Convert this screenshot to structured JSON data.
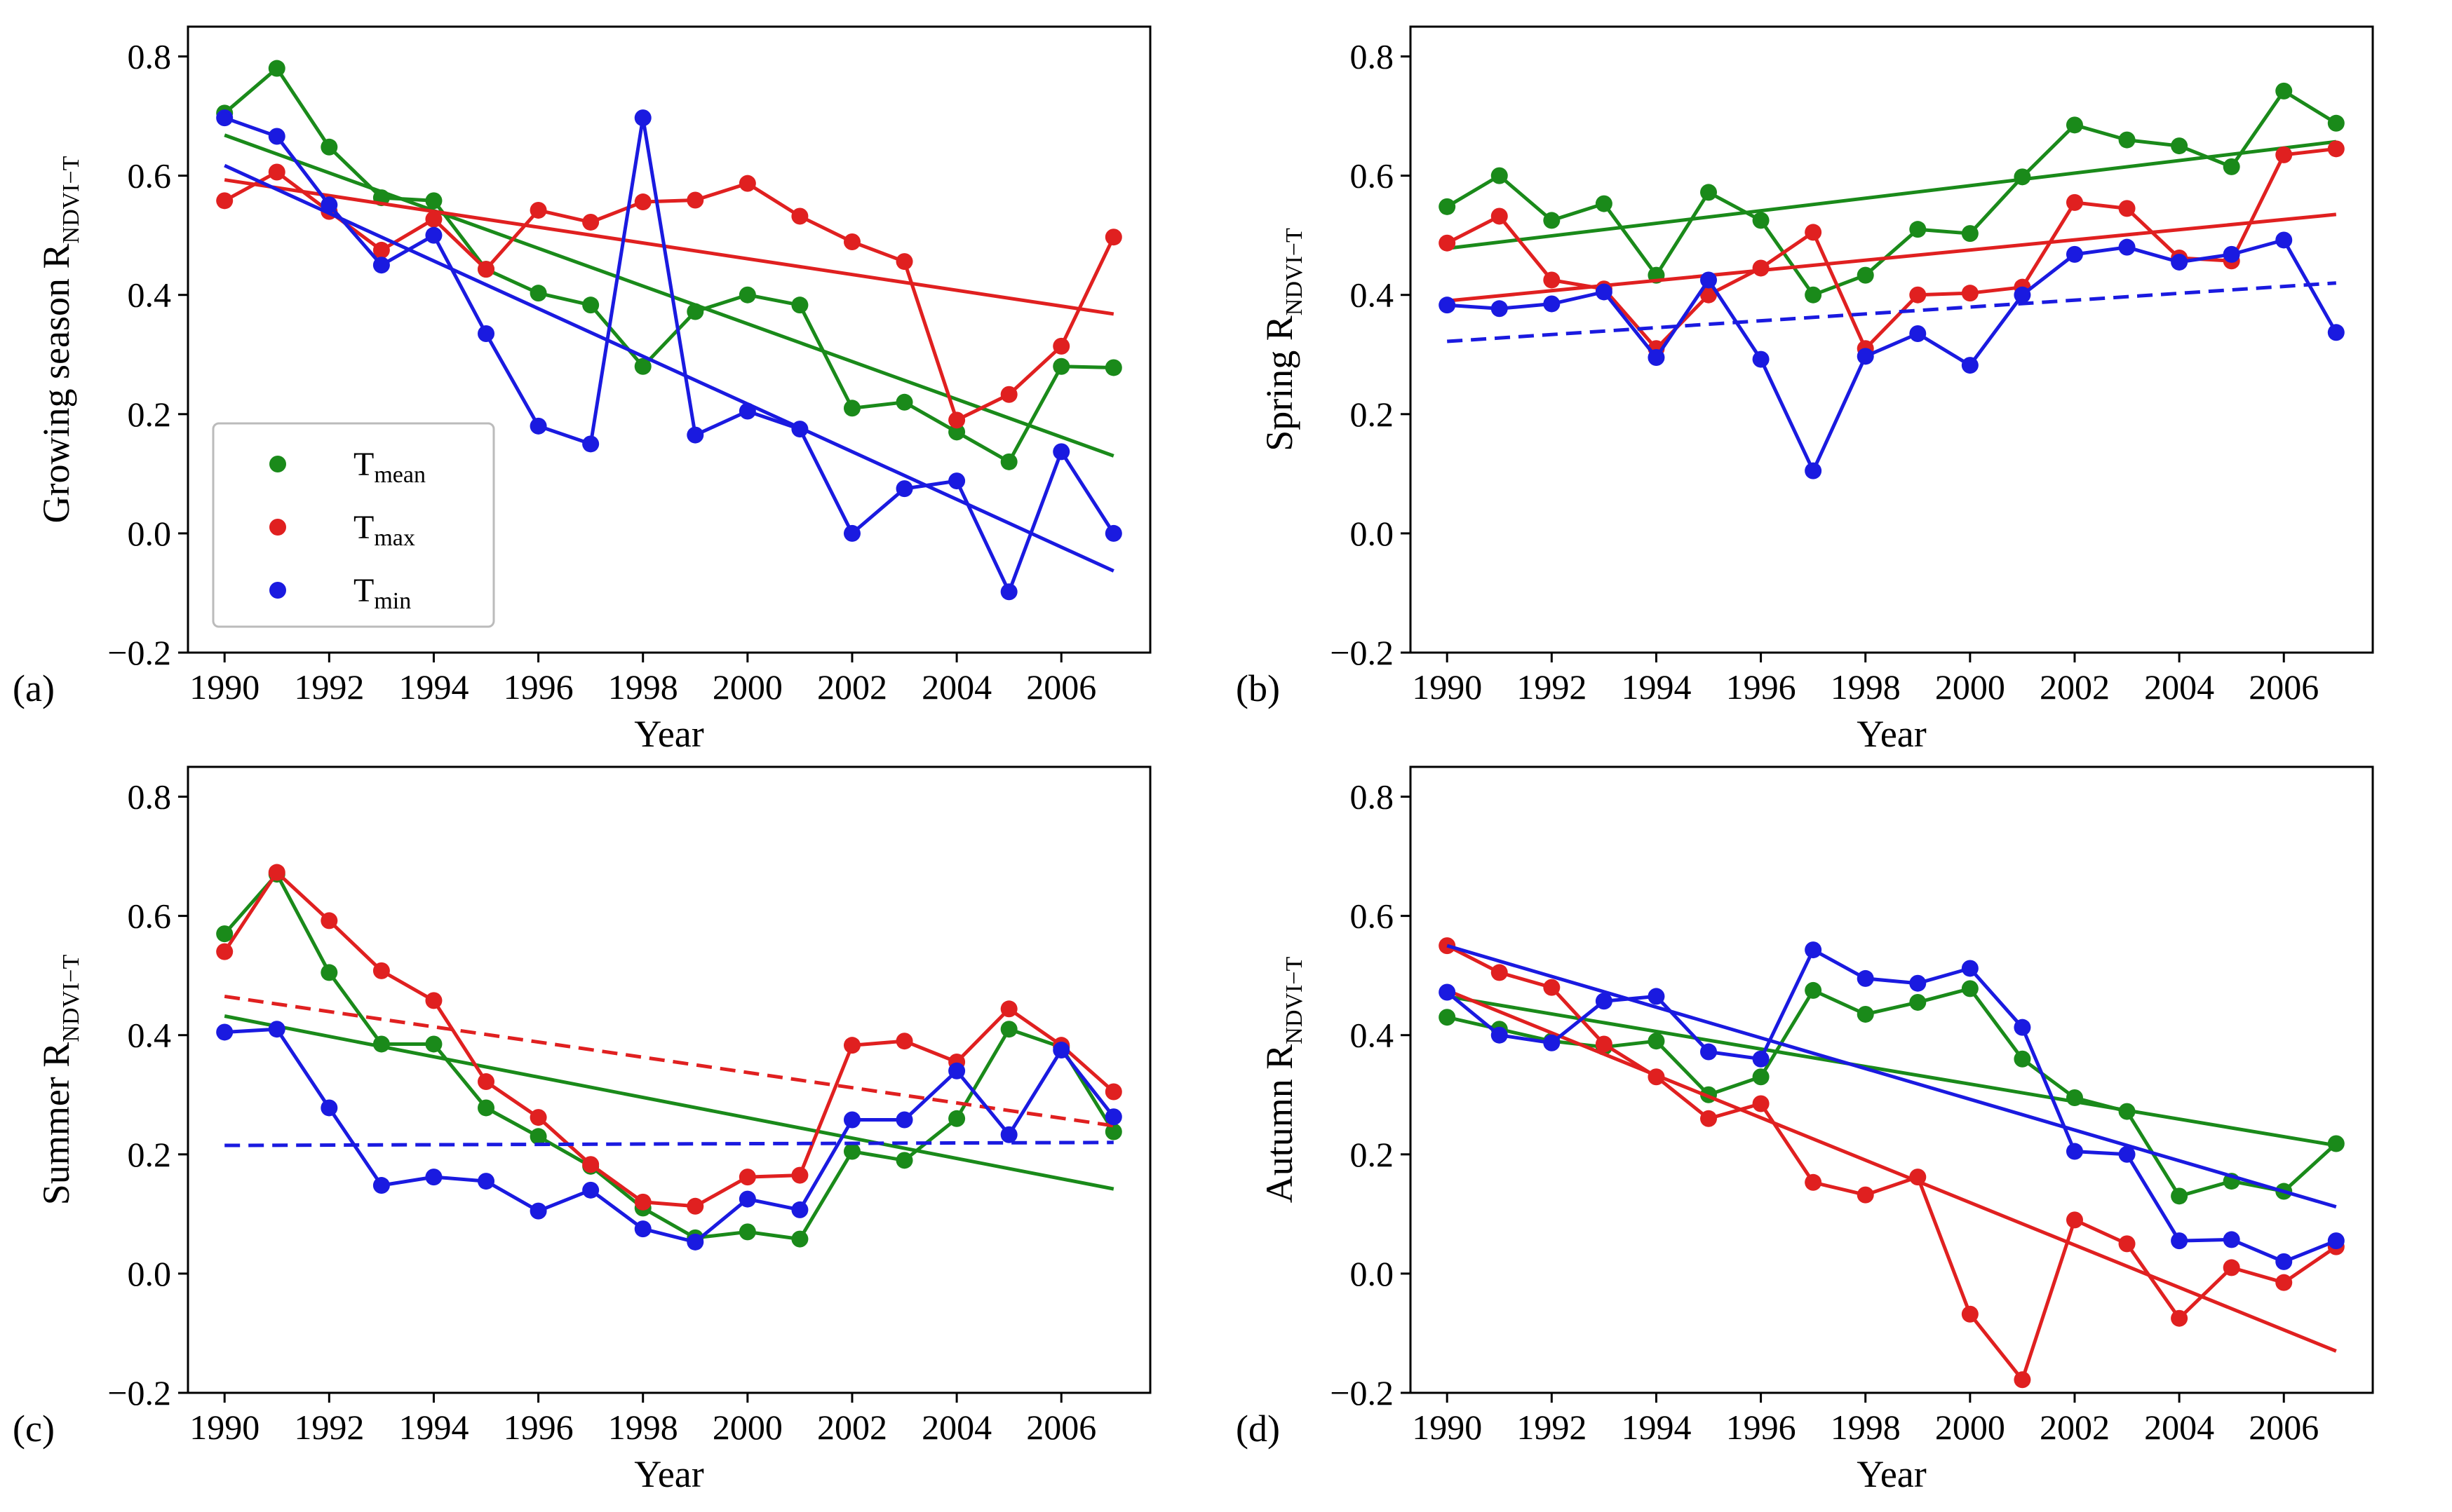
{
  "chart_data": [
    {
      "type": "line",
      "panel_label": "(a)",
      "title": "",
      "xlabel": "Year",
      "ylabel_main": "Growing season R",
      "ylabel_sub": "NDVI−T",
      "x": [
        1990,
        1991,
        1992,
        1993,
        1994,
        1995,
        1996,
        1997,
        1998,
        1999,
        2000,
        2001,
        2002,
        2003,
        2004,
        2005,
        2006,
        2007
      ],
      "xticks": [
        1990,
        1992,
        1994,
        1996,
        1998,
        2000,
        2002,
        2004,
        2006
      ],
      "xtick_labels": [
        "1990",
        "1992",
        "1994",
        "1996",
        "1998",
        "2000",
        "2002",
        "2004",
        "2006"
      ],
      "yticks": [
        -0.2,
        0.0,
        0.2,
        0.4,
        0.6,
        0.8
      ],
      "ytick_labels": [
        "−0.2",
        "0.0",
        "0.2",
        "0.4",
        "0.6",
        "0.8"
      ],
      "xlim": [
        1989.3,
        2007.7
      ],
      "ylim": [
        -0.2,
        0.85
      ],
      "grid": false,
      "legend": {
        "position": "lower-left",
        "entries": [
          {
            "main": "T",
            "sub": "mean",
            "color": "#1a8a1a"
          },
          {
            "main": "T",
            "sub": "max",
            "color": "#e02020"
          },
          {
            "main": "T",
            "sub": "min",
            "color": "#1a1ae0"
          }
        ]
      },
      "series": [
        {
          "name": "Tmean",
          "color": "#1a8a1a",
          "values": [
            0.705,
            0.78,
            0.648,
            0.563,
            0.558,
            0.443,
            0.403,
            0.383,
            0.28,
            0.372,
            0.4,
            0.383,
            0.21,
            0.22,
            0.17,
            0.12,
            0.28,
            0.278
          ],
          "trend": [
            0.668,
            0.13
          ],
          "trend_style": "solid"
        },
        {
          "name": "Tmax",
          "color": "#e02020",
          "values": [
            0.558,
            0.606,
            0.54,
            0.475,
            0.527,
            0.443,
            0.542,
            0.522,
            0.556,
            0.559,
            0.587,
            0.532,
            0.489,
            0.456,
            0.19,
            0.233,
            0.314,
            0.497
          ],
          "trend": [
            0.593,
            0.368
          ],
          "trend_style": "solid"
        },
        {
          "name": "Tmin",
          "color": "#1a1ae0",
          "values": [
            0.697,
            0.666,
            0.551,
            0.45,
            0.5,
            0.335,
            0.18,
            0.15,
            0.697,
            0.165,
            0.205,
            0.175,
            0.0,
            0.075,
            0.088,
            -0.098,
            0.137,
            0.0
          ],
          "trend": [
            0.617,
            -0.063
          ],
          "trend_style": "solid"
        }
      ]
    },
    {
      "type": "line",
      "panel_label": "(b)",
      "title": "",
      "xlabel": "Year",
      "ylabel_main": "Spring R",
      "ylabel_sub": "NDVI−T",
      "x": [
        1990,
        1991,
        1992,
        1993,
        1994,
        1995,
        1996,
        1997,
        1998,
        1999,
        2000,
        2001,
        2002,
        2003,
        2004,
        2005,
        2006,
        2007
      ],
      "xticks": [
        1990,
        1992,
        1994,
        1996,
        1998,
        2000,
        2002,
        2004,
        2006
      ],
      "xtick_labels": [
        "1990",
        "1992",
        "1994",
        "1996",
        "1998",
        "2000",
        "2002",
        "2004",
        "2006"
      ],
      "yticks": [
        -0.2,
        0.0,
        0.2,
        0.4,
        0.6,
        0.8
      ],
      "ytick_labels": [
        "−0.2",
        "0.0",
        "0.2",
        "0.4",
        "0.6",
        "0.8"
      ],
      "xlim": [
        1989.3,
        2007.7
      ],
      "ylim": [
        -0.2,
        0.85
      ],
      "grid": false,
      "series": [
        {
          "name": "Tmean",
          "color": "#1a8a1a",
          "values": [
            0.548,
            0.6,
            0.525,
            0.553,
            0.433,
            0.572,
            0.525,
            0.4,
            0.433,
            0.51,
            0.503,
            0.598,
            0.685,
            0.66,
            0.65,
            0.615,
            0.742,
            0.688
          ],
          "trend": [
            0.478,
            0.657
          ],
          "trend_style": "solid"
        },
        {
          "name": "Tmax",
          "color": "#e02020",
          "values": [
            0.487,
            0.532,
            0.425,
            0.41,
            0.31,
            0.4,
            0.445,
            0.505,
            0.31,
            0.4,
            0.403,
            0.413,
            0.555,
            0.545,
            0.462,
            0.457,
            0.635,
            0.645
          ],
          "trend": [
            0.39,
            0.535
          ],
          "trend_style": "solid"
        },
        {
          "name": "Tmin",
          "color": "#1a1ae0",
          "values": [
            0.383,
            0.377,
            0.385,
            0.405,
            0.295,
            0.425,
            0.292,
            0.105,
            0.297,
            0.335,
            0.282,
            0.4,
            0.468,
            0.48,
            0.455,
            0.468,
            0.492,
            0.337
          ],
          "trend": [
            0.322,
            0.42
          ],
          "trend_style": "dashed"
        }
      ]
    },
    {
      "type": "line",
      "panel_label": "(c)",
      "title": "",
      "xlabel": "Year",
      "ylabel_main": "Summer R",
      "ylabel_sub": "NDVI−T",
      "x": [
        1990,
        1991,
        1992,
        1993,
        1994,
        1995,
        1996,
        1997,
        1998,
        1999,
        2000,
        2001,
        2002,
        2003,
        2004,
        2005,
        2006,
        2007
      ],
      "xticks": [
        1990,
        1992,
        1994,
        1996,
        1998,
        2000,
        2002,
        2004,
        2006
      ],
      "xtick_labels": [
        "1990",
        "1992",
        "1994",
        "1996",
        "1998",
        "2000",
        "2002",
        "2004",
        "2006"
      ],
      "yticks": [
        -0.2,
        0.0,
        0.2,
        0.4,
        0.6,
        0.8
      ],
      "ytick_labels": [
        "−0.2",
        "0.0",
        "0.2",
        "0.4",
        "0.6",
        "0.8"
      ],
      "xlim": [
        1989.3,
        2007.7
      ],
      "ylim": [
        -0.2,
        0.85
      ],
      "grid": false,
      "series": [
        {
          "name": "Tmean",
          "color": "#1a8a1a",
          "values": [
            0.57,
            0.67,
            0.505,
            0.385,
            0.385,
            0.278,
            0.23,
            0.18,
            0.11,
            0.06,
            0.07,
            0.058,
            0.205,
            0.19,
            0.26,
            0.41,
            0.38,
            0.238
          ],
          "trend": [
            0.432,
            0.142
          ],
          "trend_style": "solid"
        },
        {
          "name": "Tmax",
          "color": "#e02020",
          "values": [
            0.54,
            0.673,
            0.592,
            0.508,
            0.458,
            0.322,
            0.262,
            0.183,
            0.12,
            0.113,
            0.162,
            0.165,
            0.383,
            0.39,
            0.355,
            0.444,
            0.383,
            0.305
          ],
          "trend": [
            0.465,
            0.248
          ],
          "trend_style": "dashed"
        },
        {
          "name": "Tmin",
          "color": "#1a1ae0",
          "values": [
            0.405,
            0.41,
            0.278,
            0.148,
            0.162,
            0.155,
            0.105,
            0.14,
            0.075,
            0.053,
            0.125,
            0.107,
            0.258,
            0.258,
            0.34,
            0.233,
            0.375,
            0.263
          ],
          "trend": [
            0.215,
            0.22
          ],
          "trend_style": "dashed"
        }
      ]
    },
    {
      "type": "line",
      "panel_label": "(d)",
      "title": "",
      "xlabel": "Year",
      "ylabel_main": "Autumn R",
      "ylabel_sub": "NDVI−T",
      "x": [
        1990,
        1991,
        1992,
        1993,
        1994,
        1995,
        1996,
        1997,
        1998,
        1999,
        2000,
        2001,
        2002,
        2003,
        2004,
        2005,
        2006,
        2007
      ],
      "xticks": [
        1990,
        1992,
        1994,
        1996,
        1998,
        2000,
        2002,
        2004,
        2006
      ],
      "xtick_labels": [
        "1990",
        "1992",
        "1994",
        "1996",
        "1998",
        "2000",
        "2002",
        "2004",
        "2006"
      ],
      "yticks": [
        -0.2,
        0.0,
        0.2,
        0.4,
        0.6,
        0.8
      ],
      "ytick_labels": [
        "−0.2",
        "0.0",
        "0.2",
        "0.4",
        "0.6",
        "0.8"
      ],
      "xlim": [
        1989.3,
        2007.7
      ],
      "ylim": [
        -0.2,
        0.85
      ],
      "grid": false,
      "series": [
        {
          "name": "Tmean",
          "color": "#1a8a1a",
          "values": [
            0.43,
            0.41,
            0.39,
            0.38,
            0.39,
            0.3,
            0.33,
            0.475,
            0.435,
            0.455,
            0.478,
            0.36,
            0.295,
            0.272,
            0.13,
            0.155,
            0.138,
            0.218
          ],
          "trend": [
            0.465,
            0.215
          ],
          "trend_style": "solid"
        },
        {
          "name": "Tmax",
          "color": "#e02020",
          "values": [
            0.55,
            0.505,
            0.48,
            0.385,
            0.33,
            0.26,
            0.285,
            0.153,
            0.132,
            0.162,
            -0.068,
            -0.178,
            0.09,
            0.05,
            -0.075,
            0.01,
            -0.015,
            0.045
          ],
          "trend": [
            0.475,
            -0.13
          ],
          "trend_style": "solid"
        },
        {
          "name": "Tmin",
          "color": "#1a1ae0",
          "values": [
            0.472,
            0.4,
            0.387,
            0.457,
            0.465,
            0.372,
            0.36,
            0.543,
            0.495,
            0.487,
            0.512,
            0.413,
            0.205,
            0.2,
            0.055,
            0.057,
            0.02,
            0.055
          ],
          "trend": [
            0.55,
            0.112
          ],
          "trend_style": "solid"
        }
      ]
    }
  ]
}
